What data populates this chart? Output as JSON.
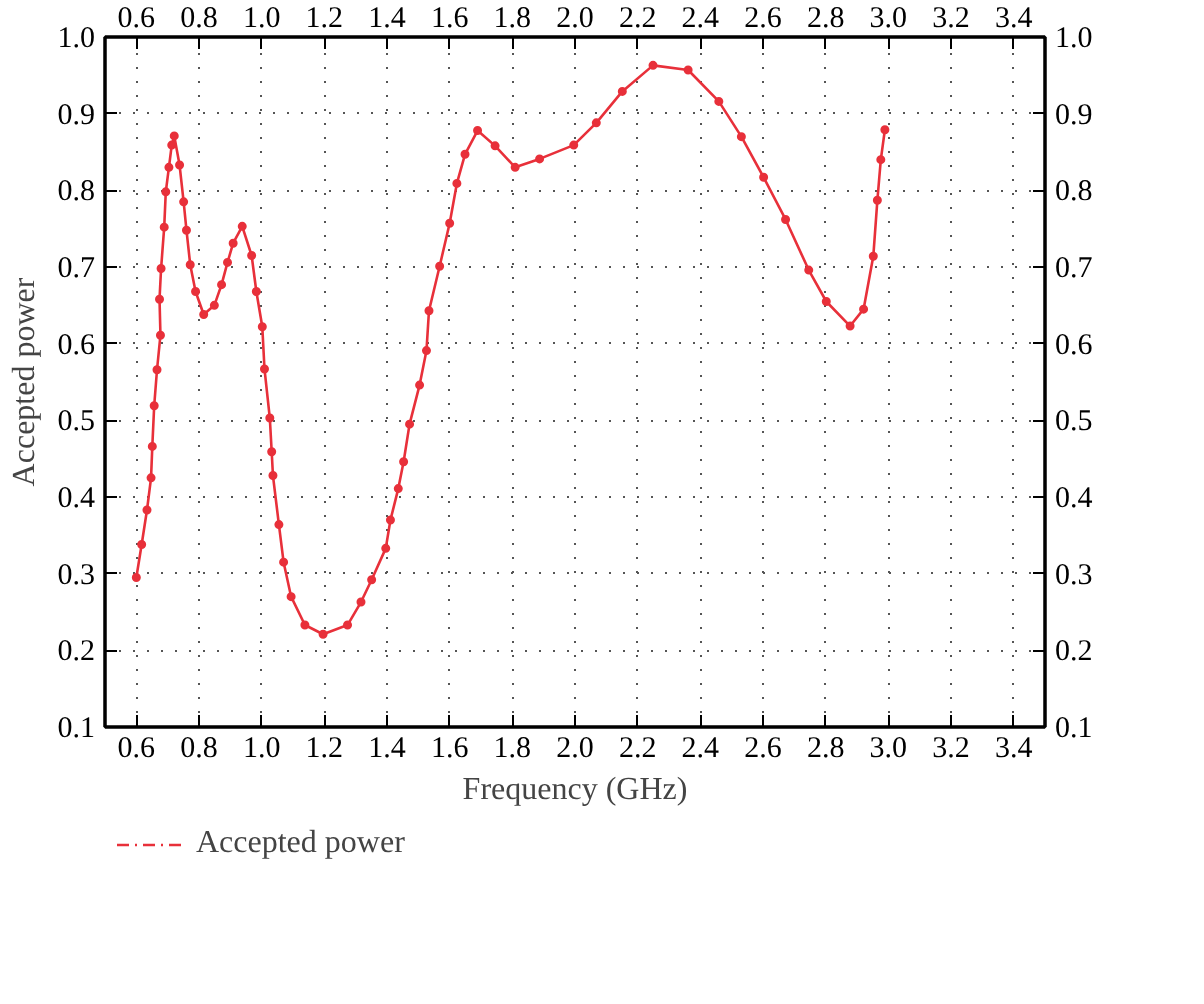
{
  "chart_data": {
    "type": "line",
    "xlabel": "Frequency (GHz)",
    "ylabel": "Accepted power",
    "xlim": [
      0.5,
      3.5
    ],
    "xticks": [
      0.6,
      0.8,
      {
        "value": 1,
        "label": "1.0"
      },
      1.2,
      1.4,
      1.6,
      1.8,
      {
        "value": 2,
        "label": "2.0"
      },
      2.2,
      2.4,
      2.6,
      2.8,
      {
        "value": 3,
        "label": "3.0"
      },
      3.2,
      3.4
    ],
    "x2lim": [
      0.5,
      3.5
    ],
    "x2ticks": [
      0.6,
      0.8,
      {
        "value": 1,
        "label": "1.0"
      },
      1.2,
      1.4,
      1.6,
      1.8,
      {
        "value": 2,
        "label": "2.0"
      },
      2.2,
      2.4,
      2.6,
      2.8,
      {
        "value": 3,
        "label": "3.0"
      },
      3.2,
      3.4
    ],
    "ylim": [
      0.1,
      1
    ],
    "yticks": [
      0.1,
      0.2,
      0.3,
      0.4,
      0.5,
      0.6,
      0.7,
      0.8,
      0.9,
      {
        "value": 1,
        "label": "1.0"
      }
    ],
    "y2lim": [
      0.1,
      1
    ],
    "y2ticks": [
      0.1,
      0.2,
      0.3,
      0.4,
      0.5,
      0.6,
      0.7,
      0.8,
      0.9,
      {
        "value": 1,
        "label": "1.0"
      }
    ],
    "grid": true,
    "legend": "bottom",
    "marker": "circle",
    "line_style": "solid",
    "series": [
      {
        "name": "Accepted power",
        "color": "#e8303a",
        "x": [
          0.6,
          0.617,
          0.634,
          0.647,
          0.651,
          0.657,
          0.666,
          0.677,
          0.674,
          0.679,
          0.689,
          0.694,
          0.704,
          0.713,
          0.721,
          0.738,
          0.751,
          0.76,
          0.772,
          0.789,
          0.815,
          0.849,
          0.872,
          0.891,
          0.909,
          0.938,
          0.968,
          0.983,
          1.002,
          1.009,
          1.026,
          1.032,
          1.036,
          1.055,
          1.07,
          1.094,
          1.138,
          1.196,
          1.274,
          1.317,
          1.351,
          1.396,
          1.411,
          1.436,
          1.453,
          1.472,
          1.504,
          1.526,
          1.534,
          1.568,
          1.6,
          1.623,
          1.649,
          1.689,
          1.745,
          1.809,
          1.887,
          1.996,
          2.068,
          2.151,
          2.249,
          2.361,
          2.459,
          2.531,
          2.602,
          2.672,
          2.746,
          2.802,
          2.878,
          2.921,
          2.952,
          2.965,
          2.976,
          2.989
        ],
        "values": [
          0.295,
          0.338,
          0.383,
          0.425,
          0.466,
          0.519,
          0.566,
          0.611,
          0.658,
          0.698,
          0.752,
          0.798,
          0.83,
          0.859,
          0.871,
          0.833,
          0.785,
          0.748,
          0.703,
          0.668,
          0.638,
          0.65,
          0.677,
          0.706,
          0.731,
          0.753,
          0.715,
          0.668,
          0.622,
          0.567,
          0.503,
          0.459,
          0.428,
          0.364,
          0.315,
          0.27,
          0.233,
          0.221,
          0.233,
          0.263,
          0.292,
          0.333,
          0.37,
          0.411,
          0.446,
          0.495,
          0.546,
          0.591,
          0.643,
          0.701,
          0.757,
          0.809,
          0.847,
          0.878,
          0.858,
          0.83,
          0.841,
          0.859,
          0.888,
          0.929,
          0.963,
          0.957,
          0.916,
          0.87,
          0.817,
          0.762,
          0.696,
          0.655,
          0.623,
          0.645,
          0.714,
          0.787,
          0.84,
          0.879
        ]
      }
    ]
  }
}
